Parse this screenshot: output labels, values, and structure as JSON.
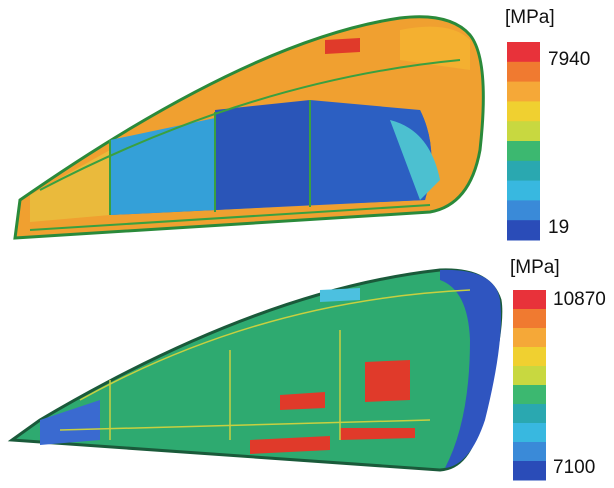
{
  "panels": [
    {
      "unit": "[MPa]",
      "max": 7940,
      "min": 19
    },
    {
      "unit": "[MPa]",
      "max": 10870,
      "min": 7100
    }
  ]
}
